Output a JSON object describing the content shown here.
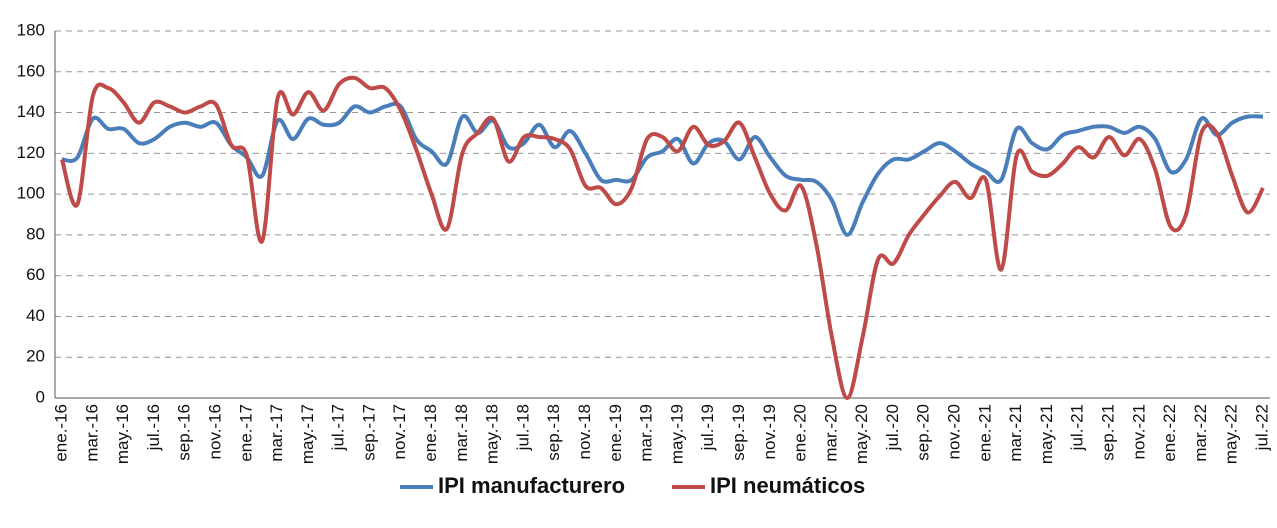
{
  "chart_data": {
    "type": "line",
    "categories": [
      "ene.-16",
      null,
      "mar.-16",
      null,
      "may.-16",
      null,
      "jul.-16",
      null,
      "sep.-16",
      null,
      "nov.-16",
      null,
      "ene.-17",
      null,
      "mar.-17",
      null,
      "may.-17",
      null,
      "jul.-17",
      null,
      "sep.-17",
      null,
      "nov.-17",
      null,
      "ene.-18",
      null,
      "mar.-18",
      null,
      "may.-18",
      null,
      "jul.-18",
      null,
      "sep.-18",
      null,
      "nov.-18",
      null,
      "ene.-19",
      null,
      "mar.-19",
      null,
      "may.-19",
      null,
      "jul.-19",
      null,
      "sep.-19",
      null,
      "nov.-19",
      null,
      "ene.-20",
      null,
      "mar.-20",
      null,
      "may.-20",
      null,
      "jul.-20",
      null,
      "sep.-20",
      null,
      "nov.-20",
      null,
      "ene.-21",
      null,
      "mar.-21",
      null,
      "may.-21",
      null,
      "jul.-21",
      null,
      "sep.-21",
      null,
      "nov.-21",
      null,
      "ene.-22",
      null,
      "mar.-22",
      null,
      "may.-22",
      null,
      "jul.-22"
    ],
    "series": [
      {
        "name": "IPI manufacturero",
        "color": "#4a7ebb",
        "values": [
          117,
          118,
          137,
          132,
          132,
          125,
          127,
          133,
          135,
          133,
          135,
          124,
          118,
          109,
          136,
          127,
          137,
          134,
          135,
          143,
          140,
          143,
          143,
          127,
          121,
          115,
          138,
          130,
          136,
          123,
          125,
          134,
          123,
          131,
          120,
          107,
          107,
          107,
          118,
          121,
          127,
          115,
          125,
          126,
          117,
          128,
          118,
          109,
          107,
          106,
          97,
          80,
          96,
          110,
          117,
          117,
          121,
          125,
          121,
          115,
          111,
          107,
          132,
          125,
          122,
          129,
          131,
          133,
          133,
          130,
          133,
          127,
          111,
          117,
          137,
          129,
          135,
          138,
          138
        ]
      },
      {
        "name": "IPI neumáticos",
        "color": "#be4b48",
        "values": [
          117,
          95,
          148,
          152,
          145,
          135,
          145,
          143,
          140,
          143,
          144,
          124,
          119,
          77,
          147,
          139,
          150,
          141,
          154,
          157,
          152,
          152,
          141,
          122,
          100,
          83,
          120,
          130,
          137,
          116,
          128,
          128,
          127,
          122,
          104,
          103,
          95,
          103,
          127,
          128,
          121,
          133,
          124,
          126,
          135,
          118,
          100,
          92,
          104,
          75,
          30,
          0,
          30,
          68,
          66,
          80,
          90,
          99,
          106,
          98,
          107,
          63,
          119,
          111,
          109,
          115,
          123,
          118,
          128,
          119,
          127,
          112,
          84,
          90,
          130,
          130,
          109,
          91,
          103
        ]
      }
    ],
    "ylim": [
      0,
      180
    ],
    "yticks": [
      0,
      20,
      40,
      60,
      80,
      100,
      120,
      140,
      160,
      180
    ],
    "grid": true,
    "legend": "bottom"
  }
}
